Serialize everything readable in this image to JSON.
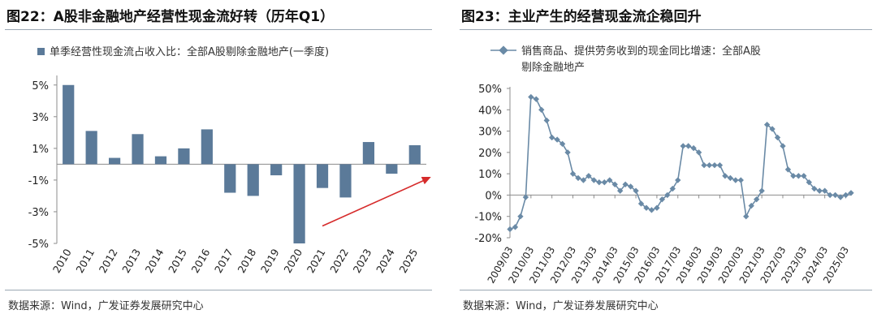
{
  "left": {
    "title": "图22：A股非金融地产经营性现金流好转（历年Q1）",
    "source": "数据来源：Wind，广发证券发展研究中心",
    "chart_data": {
      "type": "bar",
      "legend": "单季经营性现金流占收入比：全部A股剔除金融地产(一季度)",
      "legend_position": "top",
      "categories": [
        "2010",
        "2011",
        "2012",
        "2013",
        "2014",
        "2015",
        "2016",
        "2017",
        "2018",
        "2019",
        "2020",
        "2021",
        "2022",
        "2023",
        "2024",
        "2025"
      ],
      "values": [
        5.0,
        2.1,
        0.4,
        1.9,
        0.5,
        1.0,
        2.2,
        -1.8,
        -2.0,
        -0.7,
        -5.0,
        -1.5,
        -2.1,
        1.4,
        -0.6,
        1.2
      ],
      "y_ticks": [
        "5%",
        "3%",
        "1%",
        "-1%",
        "-3%",
        "-5%"
      ],
      "y_tick_values": [
        5,
        3,
        1,
        -1,
        -3,
        -5
      ],
      "ylim": [
        -5,
        5.5
      ],
      "bar_color": "#5b7a99",
      "annotation": {
        "type": "trend-arrow",
        "color": "#d62b2b",
        "from": {
          "x": "2021",
          "y": -3.9
        },
        "to": {
          "x": "2025",
          "y": -0.8
        }
      }
    }
  },
  "right": {
    "title": "图23：主业产生的经营现金流企稳回升",
    "source": "数据来源：Wind，广发证券发展研究中心",
    "chart_data": {
      "type": "line",
      "legend": [
        "销售商品、提供劳务收到的现金同比增速：全部A股",
        "剔除金融地产"
      ],
      "legend_position": "top",
      "x_ticks": [
        "2009/03",
        "2010/03",
        "2011/03",
        "2012/03",
        "2013/03",
        "2014/03",
        "2015/03",
        "2016/03",
        "2017/03",
        "2018/03",
        "2019/03",
        "2020/03",
        "2021/03",
        "2022/03",
        "2023/03",
        "2024/03",
        "2025/03"
      ],
      "y_ticks": [
        "50%",
        "40%",
        "30%",
        "20%",
        "10%",
        "0%",
        "-10%",
        "-20%"
      ],
      "y_tick_values": [
        50,
        40,
        30,
        20,
        10,
        0,
        -10,
        -20
      ],
      "ylim": [
        -20,
        50
      ],
      "line_color": "#6a8aa6",
      "values": [
        -16,
        -15,
        -10,
        -1,
        46,
        45,
        40,
        35,
        27,
        26,
        24,
        20,
        10,
        8,
        7,
        9,
        7,
        6,
        6,
        7,
        5,
        2,
        5,
        4,
        2,
        -4,
        -6,
        -7,
        -6,
        -2,
        0,
        3,
        7,
        23,
        23,
        22,
        20,
        14,
        14,
        14,
        14,
        9,
        8,
        7,
        7,
        -10,
        -5,
        -2,
        2,
        33,
        31,
        27,
        23,
        12,
        9,
        9,
        9,
        6,
        3,
        2,
        2,
        0,
        0,
        -1,
        0,
        1
      ]
    }
  }
}
